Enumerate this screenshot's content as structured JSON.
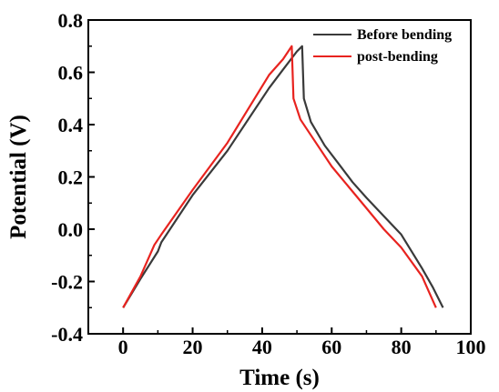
{
  "chart_data": {
    "type": "line",
    "xlabel": "Time (s)",
    "ylabel": "Potential (V)",
    "xlim": [
      -10,
      100
    ],
    "ylim": [
      -0.4,
      0.8
    ],
    "xticks": [
      0,
      20,
      40,
      60,
      80,
      100
    ],
    "yticks": [
      -0.4,
      -0.2,
      0.0,
      0.2,
      0.4,
      0.6,
      0.8
    ],
    "xtick_labels": [
      "0",
      "20",
      "40",
      "60",
      "80",
      "100"
    ],
    "ytick_labels": [
      "-0.4",
      "-0.2",
      "0.0",
      "0.2",
      "0.4",
      "0.6",
      "0.8"
    ],
    "grid": false,
    "legend_position": "top-right",
    "series": [
      {
        "name": "Before bending",
        "color": "#3a3a3a",
        "x": [
          0,
          5,
          10,
          11,
          20,
          30,
          42,
          46,
          50,
          51.5,
          52,
          54,
          58,
          62,
          66,
          70,
          75,
          80,
          86,
          89,
          92
        ],
        "y": [
          -0.3,
          -0.19,
          -0.085,
          -0.05,
          0.13,
          0.3,
          0.54,
          0.61,
          0.68,
          0.7,
          0.5,
          0.41,
          0.32,
          0.25,
          0.18,
          0.12,
          0.05,
          -0.02,
          -0.15,
          -0.22,
          -0.3
        ]
      },
      {
        "name": "post-bending",
        "color": "#e8231f",
        "x": [
          0,
          5,
          9,
          11,
          20,
          30,
          42,
          46,
          48.5,
          49,
          51,
          55,
          60,
          65,
          70,
          75,
          80,
          86,
          90
        ],
        "y": [
          -0.3,
          -0.18,
          -0.06,
          -0.02,
          0.15,
          0.33,
          0.59,
          0.65,
          0.7,
          0.5,
          0.42,
          0.34,
          0.24,
          0.16,
          0.08,
          0.0,
          -0.07,
          -0.18,
          -0.3
        ]
      }
    ]
  }
}
